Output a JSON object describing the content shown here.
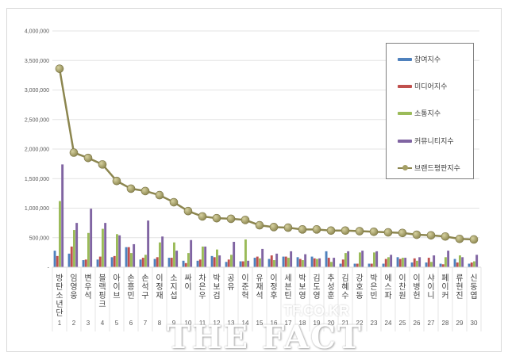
{
  "chart_data": {
    "type": "bar",
    "title": "",
    "xlabel": "",
    "ylabel": "",
    "ylim": [
      0,
      4000000
    ],
    "yticks": [
      "-",
      "500,000",
      "1,000,000",
      "1,500,000",
      "2,000,000",
      "2,500,000",
      "3,000,000",
      "3,500,000",
      "4,000,000"
    ],
    "grid": true,
    "legend_position": "right",
    "categories": [
      "방탄소년단",
      "임영웅",
      "변우석",
      "블랙핑크",
      "아이브",
      "손흥민",
      "손석구",
      "이정재",
      "소지섭",
      "싸이",
      "차은우",
      "박보검",
      "공유",
      "이준혁",
      "유재석",
      "이정후",
      "세븐틴",
      "박보영",
      "김도영",
      "추성훈",
      "김혜수",
      "강호동",
      "박은빈",
      "에스파",
      "이찬원",
      "이병헌",
      "샤이니",
      "페이커",
      "류현진",
      "신동엽"
    ],
    "ranks": [
      "1",
      "2",
      "3",
      "4",
      "5",
      "6",
      "7",
      "8",
      "9",
      "10",
      "11",
      "12",
      "13",
      "14",
      "15",
      "16",
      "17",
      "18",
      "19",
      "20",
      "21",
      "22",
      "23",
      "24",
      "25",
      "26",
      "27",
      "28",
      "29",
      "30"
    ],
    "series": [
      {
        "name": "참여지수",
        "type": "bar",
        "color": "#4f81bd",
        "values": [
          280000,
          230000,
          120000,
          130000,
          170000,
          340000,
          130000,
          140000,
          160000,
          110000,
          110000,
          190000,
          90000,
          100000,
          160000,
          140000,
          180000,
          170000,
          180000,
          270000,
          60000,
          60000,
          60000,
          60000,
          170000,
          80000,
          80000,
          60000,
          140000,
          60000
        ]
      },
      {
        "name": "미디어지수",
        "type": "bar",
        "color": "#c0504d",
        "values": [
          190000,
          350000,
          130000,
          180000,
          190000,
          340000,
          160000,
          170000,
          160000,
          70000,
          130000,
          170000,
          130000,
          100000,
          180000,
          200000,
          180000,
          140000,
          150000,
          160000,
          130000,
          60000,
          60000,
          140000,
          140000,
          150000,
          160000,
          50000,
          80000,
          80000
        ]
      },
      {
        "name": "소통지수",
        "type": "bar",
        "color": "#9bbb59",
        "values": [
          1120000,
          630000,
          580000,
          650000,
          560000,
          240000,
          210000,
          420000,
          420000,
          240000,
          350000,
          300000,
          210000,
          470000,
          150000,
          120000,
          160000,
          120000,
          140000,
          90000,
          240000,
          250000,
          250000,
          170000,
          160000,
          110000,
          90000,
          170000,
          200000,
          100000
        ]
      },
      {
        "name": "커뮤니티지수",
        "type": "bar",
        "color": "#8064a2",
        "values": [
          1740000,
          750000,
          990000,
          750000,
          540000,
          390000,
          790000,
          520000,
          280000,
          460000,
          350000,
          200000,
          430000,
          110000,
          310000,
          230000,
          270000,
          220000,
          150000,
          160000,
          270000,
          280000,
          270000,
          210000,
          160000,
          170000,
          200000,
          280000,
          170000,
          210000
        ]
      },
      {
        "name": "브랜드평판지수",
        "type": "line",
        "color": "#8c864f",
        "values": [
          3360000,
          1940000,
          1850000,
          1740000,
          1460000,
          1330000,
          1290000,
          1220000,
          1100000,
          950000,
          860000,
          830000,
          820000,
          800000,
          710000,
          680000,
          670000,
          640000,
          640000,
          620000,
          620000,
          610000,
          600000,
          590000,
          580000,
          550000,
          540000,
          520000,
          480000,
          470000
        ]
      }
    ]
  },
  "legend": {
    "items": [
      {
        "label": "참여지수",
        "color": "#4f81bd",
        "kind": "bar"
      },
      {
        "label": "미디어지수",
        "color": "#c0504d",
        "kind": "bar"
      },
      {
        "label": "소통지수",
        "color": "#9bbb59",
        "kind": "bar"
      },
      {
        "label": "커뮤니티지수",
        "color": "#8064a2",
        "kind": "bar"
      },
      {
        "label": "브랜드평판지수",
        "color": "#8c864f",
        "kind": "line"
      }
    ]
  },
  "watermark": {
    "main": "THE FACT",
    "sub": "TF.CO.KR"
  }
}
